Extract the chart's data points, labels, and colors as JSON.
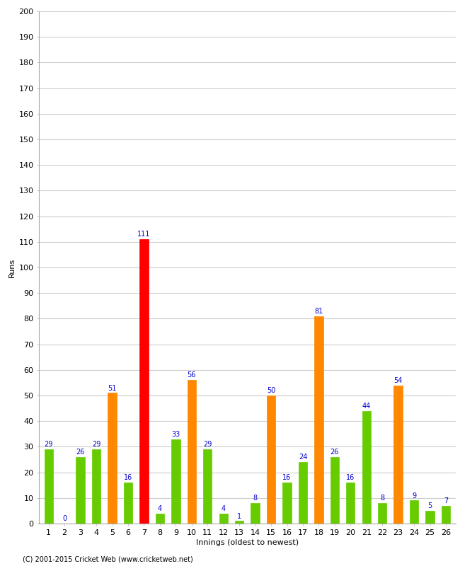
{
  "innings": [
    1,
    2,
    3,
    4,
    5,
    6,
    7,
    8,
    9,
    10,
    11,
    12,
    13,
    14,
    15,
    16,
    17,
    18,
    19,
    20,
    21,
    22,
    23,
    24,
    25,
    26
  ],
  "runs": [
    29,
    0,
    26,
    29,
    51,
    16,
    111,
    4,
    33,
    56,
    29,
    4,
    1,
    8,
    50,
    16,
    24,
    81,
    26,
    16,
    44,
    8,
    54,
    9,
    5,
    7
  ],
  "colors": [
    "#66cc00",
    "#66cc00",
    "#66cc00",
    "#66cc00",
    "#ff8800",
    "#66cc00",
    "#ff0000",
    "#66cc00",
    "#66cc00",
    "#ff8800",
    "#66cc00",
    "#66cc00",
    "#66cc00",
    "#66cc00",
    "#ff8800",
    "#66cc00",
    "#66cc00",
    "#ff8800",
    "#66cc00",
    "#66cc00",
    "#66cc00",
    "#66cc00",
    "#ff8800",
    "#66cc00",
    "#66cc00",
    "#66cc00"
  ],
  "xlabel": "Innings (oldest to newest)",
  "ylabel": "Runs",
  "ylim": [
    0,
    200
  ],
  "yticks": [
    0,
    10,
    20,
    30,
    40,
    50,
    60,
    70,
    80,
    90,
    100,
    110,
    120,
    130,
    140,
    150,
    160,
    170,
    180,
    190,
    200
  ],
  "label_color": "#0000cc",
  "bg_color": "#ffffff",
  "footer": "(C) 2001-2015 Cricket Web (www.cricketweb.net)",
  "label_fontsize": 7,
  "axis_fontsize": 8,
  "grid_color": "#cccccc",
  "bar_width": 0.55
}
